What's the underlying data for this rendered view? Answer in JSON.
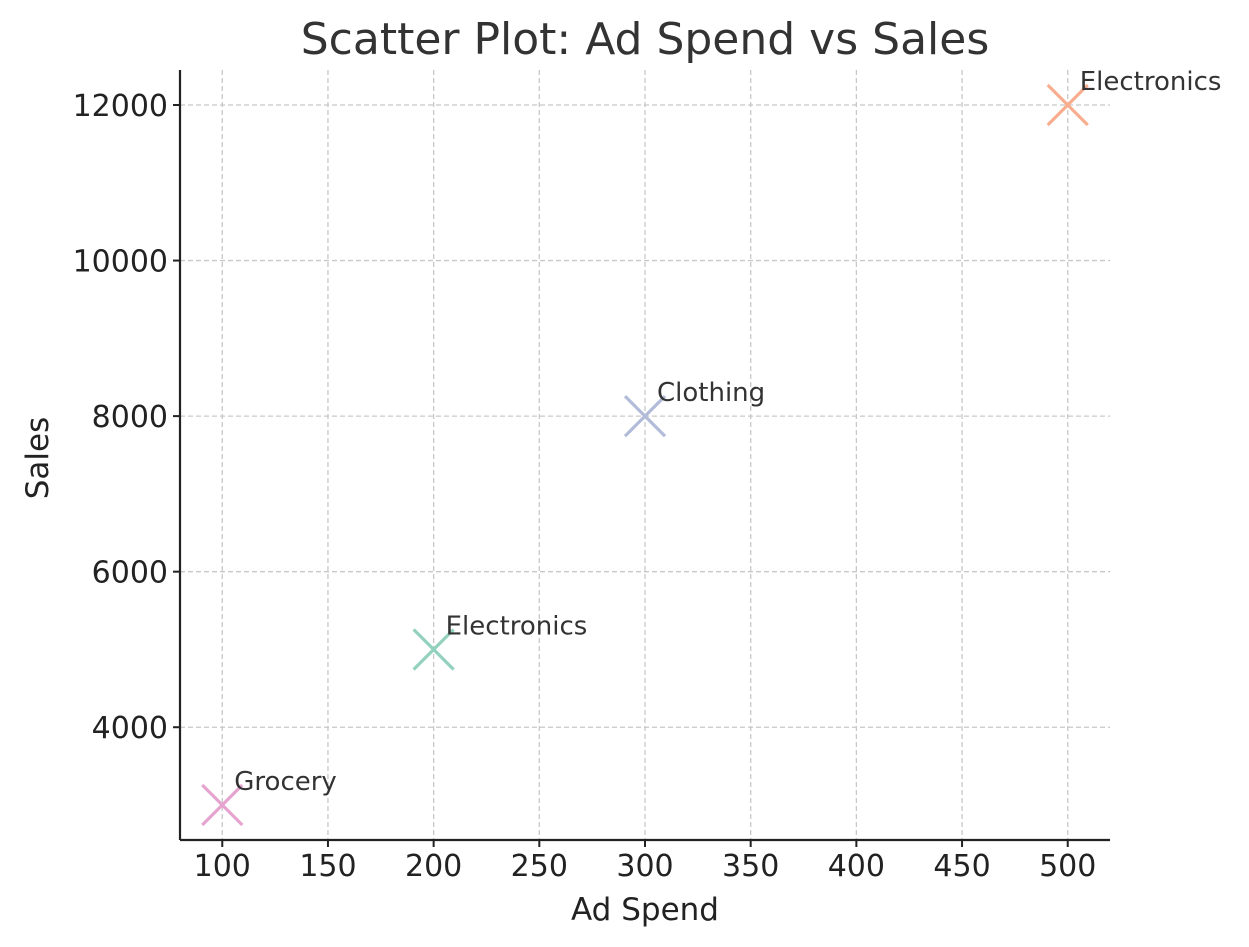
{
  "chart_data": {
    "type": "scatter",
    "title": "Scatter Plot: Ad Spend vs Sales",
    "xlabel": "Ad Spend",
    "ylabel": "Sales",
    "xlim": [
      80,
      520
    ],
    "ylim": [
      2550,
      12450
    ],
    "xticks": [
      100,
      150,
      200,
      250,
      300,
      350,
      400,
      450,
      500
    ],
    "yticks": [
      4000,
      6000,
      8000,
      10000,
      12000
    ],
    "grid": true,
    "marker": "x",
    "points": [
      {
        "x": 100,
        "y": 3000,
        "label": "Grocery",
        "color": "#e7a3cf"
      },
      {
        "x": 200,
        "y": 5000,
        "label": "Electronics",
        "color": "#91d1bd"
      },
      {
        "x": 300,
        "y": 8000,
        "label": "Clothing",
        "color": "#b2bcd9"
      },
      {
        "x": 500,
        "y": 12000,
        "label": "Electronics",
        "color": "#f7ad8e"
      }
    ]
  }
}
